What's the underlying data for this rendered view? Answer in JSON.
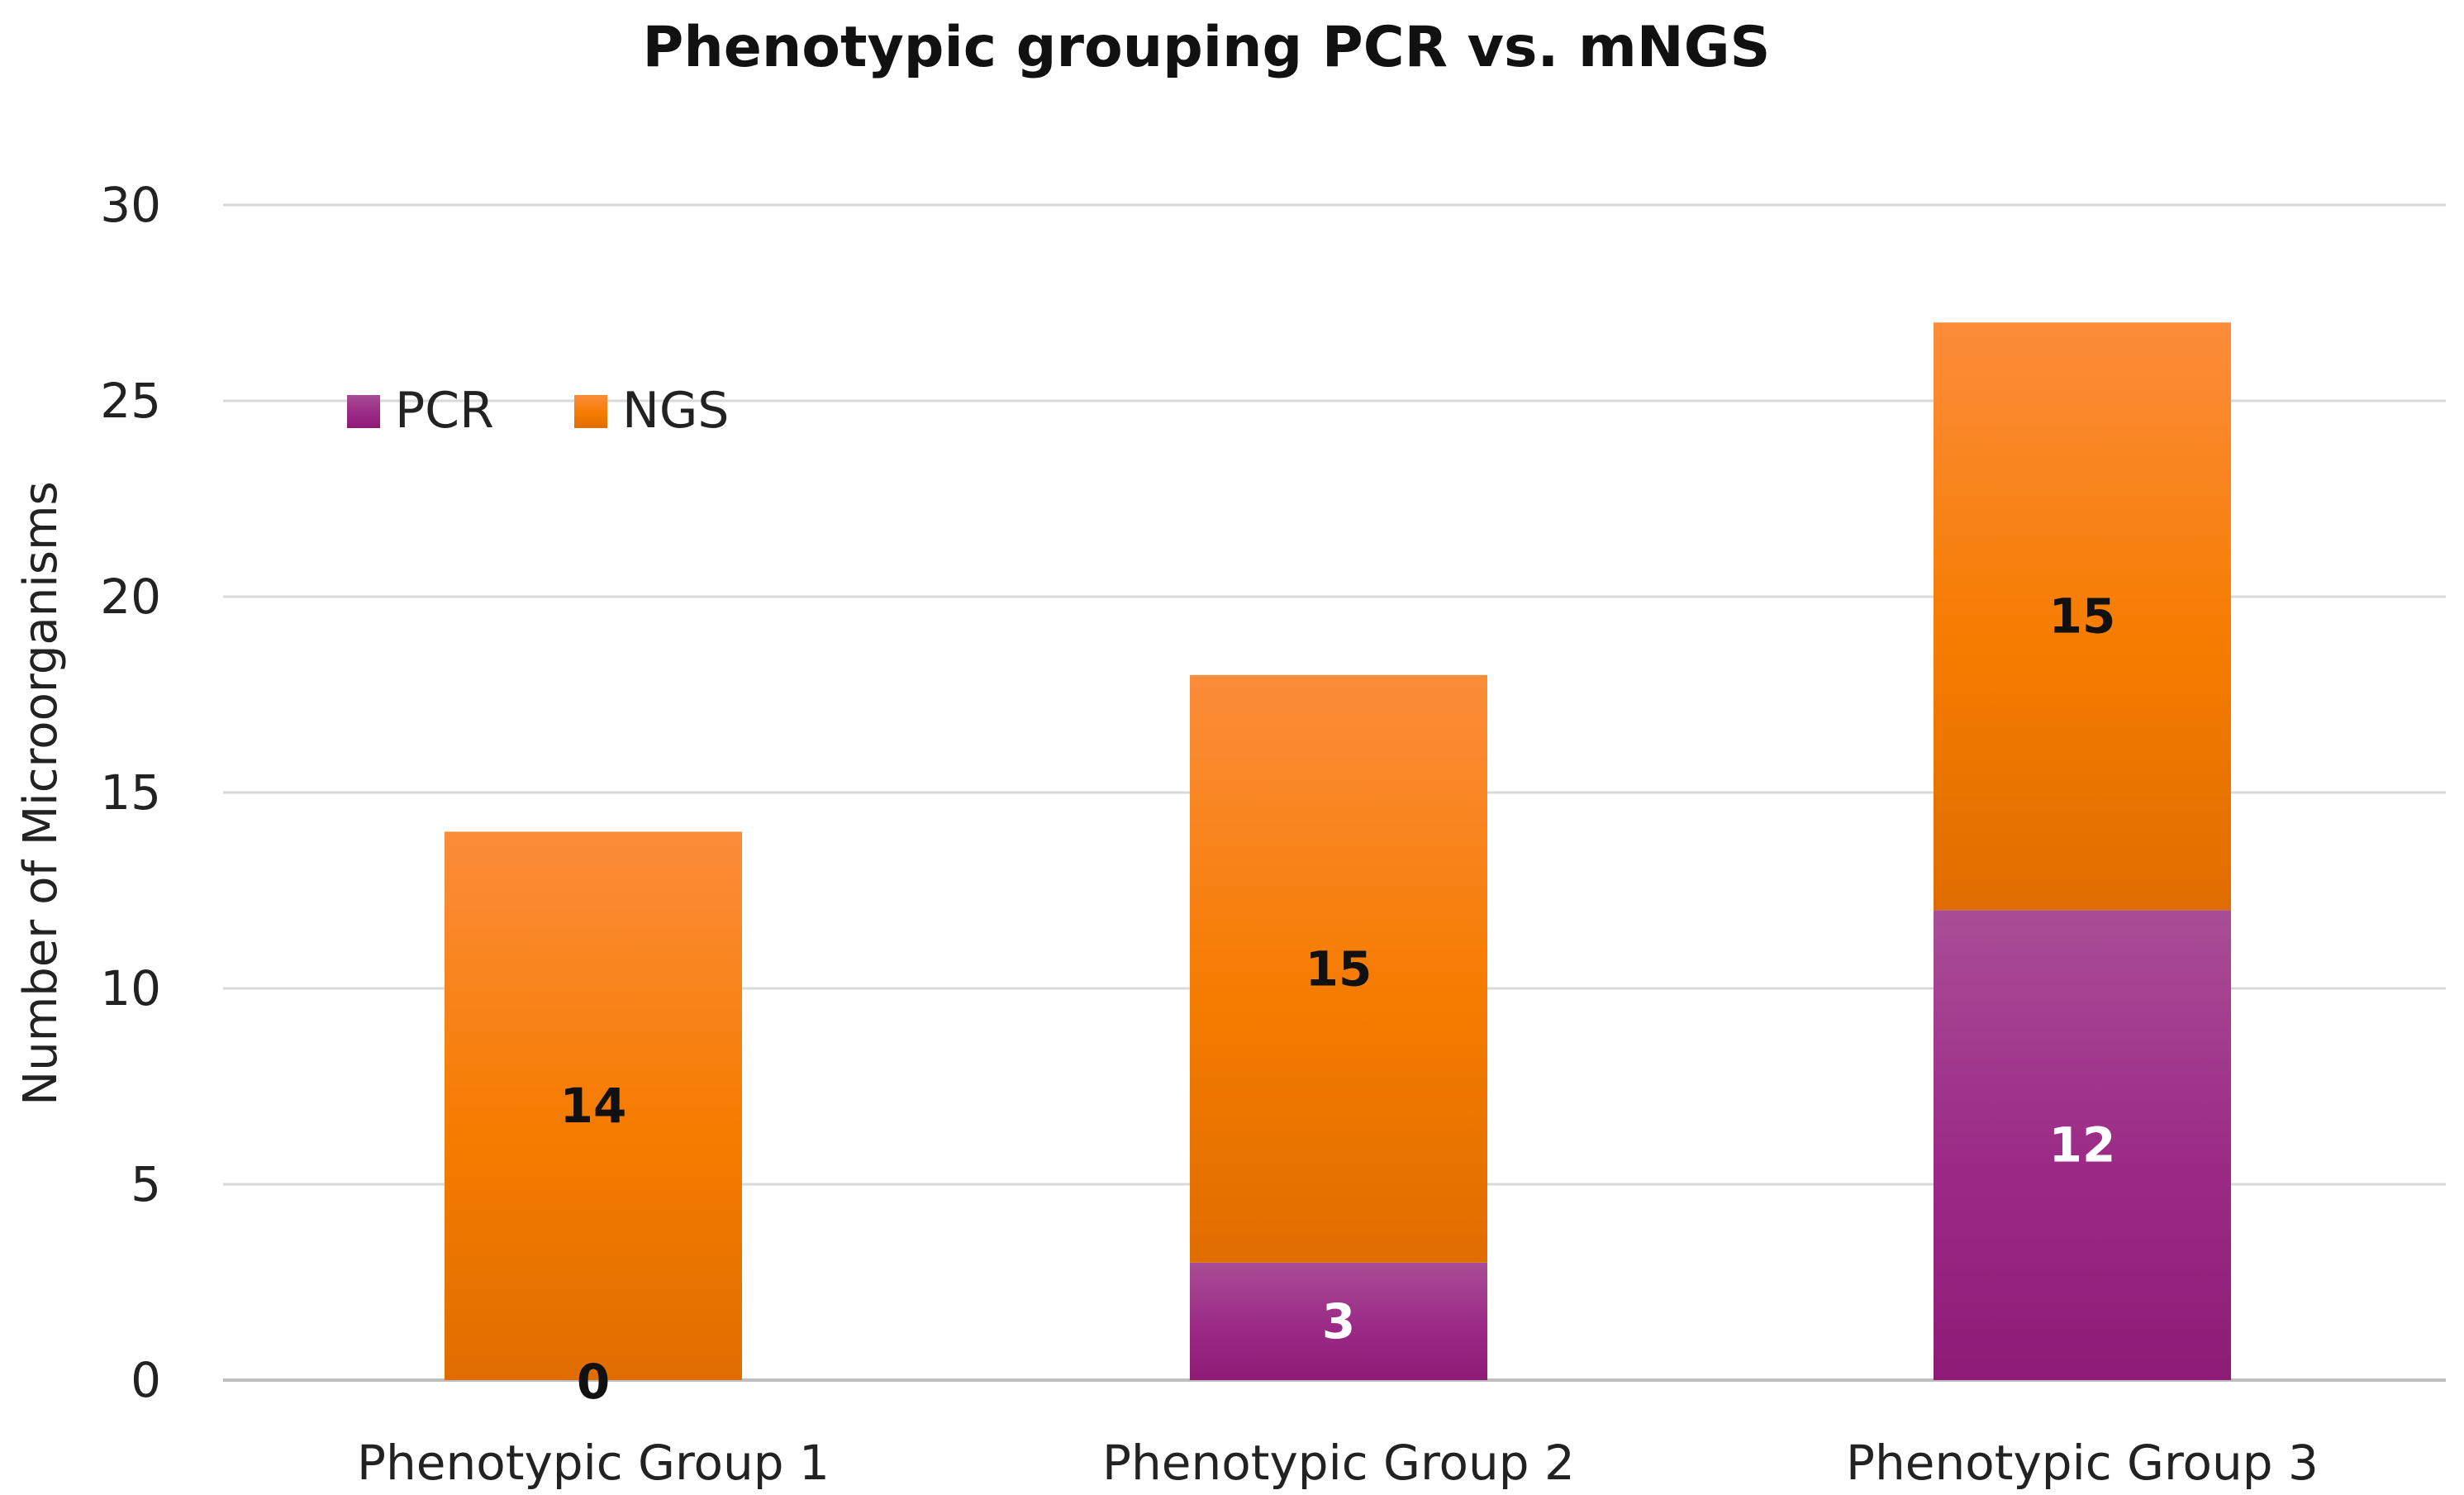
{
  "chart_data": {
    "type": "bar",
    "stacked": true,
    "title": "Phenotypic grouping PCR vs. mNGS",
    "xlabel": "",
    "ylabel": "Number of Microorganisms",
    "ylim": [
      0,
      30
    ],
    "yticks": [
      0,
      5,
      10,
      15,
      20,
      25,
      30
    ],
    "grid": true,
    "legend_position": "top-left",
    "categories": [
      "Phenotypic Group 1",
      "Phenotypic Group 2",
      "Phenotypic Group 3"
    ],
    "series": [
      {
        "name": "PCR",
        "values": [
          0,
          3,
          12
        ],
        "labels": [
          "0",
          "3",
          "12"
        ],
        "color": "#9B2A86",
        "color_light": "#A94D96",
        "color_dark": "#8E1C77",
        "label_color": "#ffffff",
        "zero_label_color": "#111111"
      },
      {
        "name": "NGS",
        "values": [
          14,
          15,
          15
        ],
        "labels": [
          "14",
          "15",
          "15"
        ],
        "color": "#F57C00",
        "color_light": "#FC8C3A",
        "color_dark": "#E06D00",
        "label_color": "#111111"
      }
    ],
    "gridline_color": "#D9D9D9",
    "axis_color": "#BFBFBF"
  }
}
